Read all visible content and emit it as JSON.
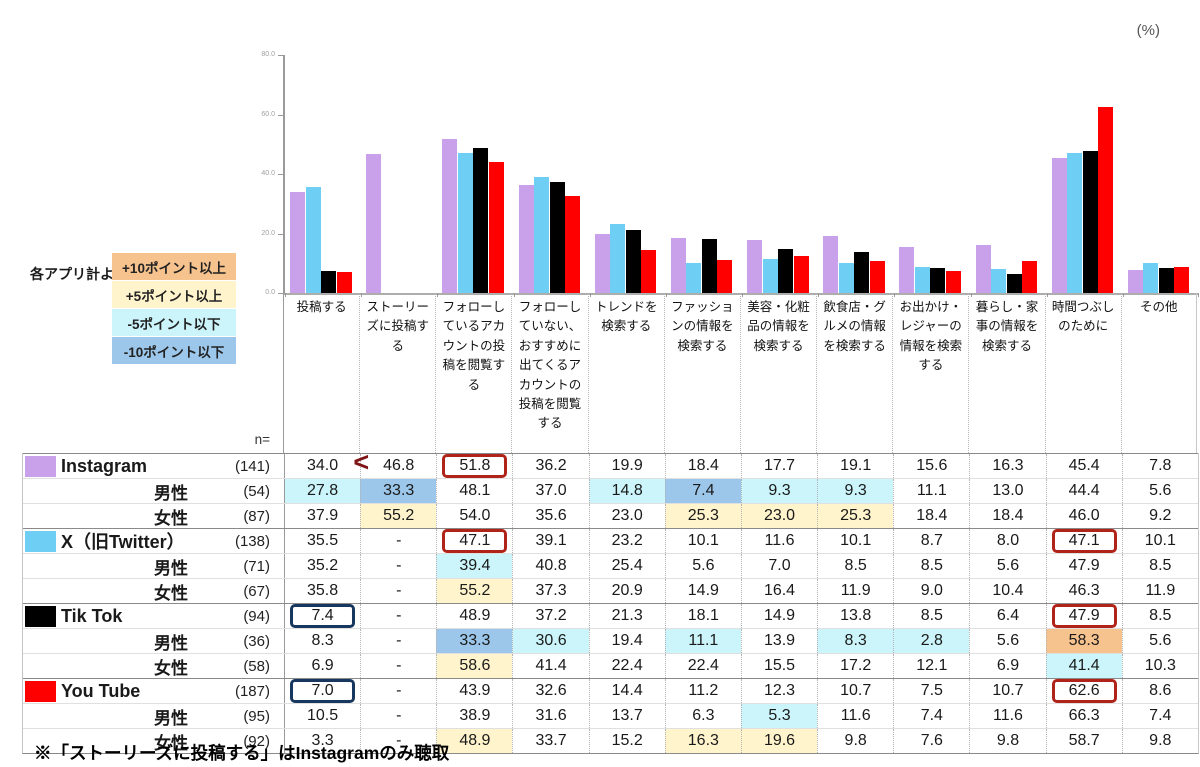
{
  "percent_label": "(%)",
  "legend": {
    "intro": "各アプリ計より",
    "items": [
      {
        "label": "+10ポイント以上",
        "key": "orange"
      },
      {
        "label": "+5ポイント以上",
        "key": "yellow"
      },
      {
        "label": "-5ポイント以下",
        "key": "cyan"
      },
      {
        "label": "-10ポイント以下",
        "key": "blue"
      }
    ]
  },
  "highlight_colors": {
    "orange": "#F6C28E",
    "yellow": "#FFF4CC",
    "cyan": "#CBF5FA",
    "blue": "#9CC7EA"
  },
  "box_colors": {
    "red": "#B02318",
    "navy": "#17375E"
  },
  "chart_data": {
    "type": "bar",
    "unit": "(%)",
    "ylim": [
      0,
      80
    ],
    "yticks": [
      0,
      20,
      40,
      60,
      80
    ],
    "categories": [
      "投稿する",
      "ストーリーズに投稿する",
      "フォローしているアカウントの投稿を閲覧する",
      "フォローしていない、おすすめに出てくるアカウントの投稿を閲覧する",
      "トレンドを検索する",
      "ファッションの情報を検索する",
      "美容・化粧品の情報を検索する",
      "飲食店・グルメの情報を検索する",
      "お出かけ・レジャーの情報を検索する",
      "暮らし・家事の情報を検索する",
      "時間つぶしのために",
      "その他"
    ],
    "series": [
      {
        "name": "Instagram",
        "color": "#C9A1EB",
        "values": [
          34.0,
          46.8,
          51.8,
          36.2,
          19.9,
          18.4,
          17.7,
          19.1,
          15.6,
          16.3,
          45.4,
          7.8
        ]
      },
      {
        "name": "X（旧Twitter）",
        "color": "#6FCEF4",
        "values": [
          35.5,
          null,
          47.1,
          39.1,
          23.2,
          10.1,
          11.6,
          10.1,
          8.7,
          8.0,
          47.1,
          10.1
        ]
      },
      {
        "name": "Tik Tok",
        "color": "#000000",
        "values": [
          7.4,
          null,
          48.9,
          37.2,
          21.3,
          18.1,
          14.9,
          13.8,
          8.5,
          6.4,
          47.9,
          8.5
        ]
      },
      {
        "name": "You Tube",
        "color": "#FE0000",
        "values": [
          7.0,
          null,
          43.9,
          32.6,
          14.4,
          11.2,
          12.3,
          10.7,
          7.5,
          10.7,
          62.6,
          8.6
        ]
      }
    ]
  },
  "table": {
    "n_label": "n=",
    "rows": [
      {
        "label": "Instagram",
        "type": "app",
        "swatch": "#C9A1EB",
        "n": "(141)",
        "values": [
          "34.0",
          "46.8",
          "51.8",
          "36.2",
          "19.9",
          "18.4",
          "17.7",
          "19.1",
          "15.6",
          "16.3",
          "45.4",
          "7.8"
        ],
        "highlights": {},
        "boxes": {
          "2": "red"
        },
        "marks": {
          "0": "<"
        }
      },
      {
        "label": "男性",
        "type": "gender",
        "n": "(54)",
        "values": [
          "27.8",
          "33.3",
          "48.1",
          "37.0",
          "14.8",
          "7.4",
          "9.3",
          "9.3",
          "11.1",
          "13.0",
          "44.4",
          "5.6"
        ],
        "highlights": {
          "0": "cyan",
          "1": "blue",
          "4": "cyan",
          "5": "blue",
          "6": "cyan",
          "7": "cyan"
        },
        "boxes": {},
        "marks": {}
      },
      {
        "label": "女性",
        "type": "gender",
        "n": "(87)",
        "values": [
          "37.9",
          "55.2",
          "54.0",
          "35.6",
          "23.0",
          "25.3",
          "23.0",
          "25.3",
          "18.4",
          "18.4",
          "46.0",
          "9.2"
        ],
        "highlights": {
          "1": "yellow",
          "5": "yellow",
          "6": "yellow",
          "7": "yellow"
        },
        "boxes": {},
        "marks": {}
      },
      {
        "label": "X（旧Twitter）",
        "type": "app",
        "swatch": "#6FCEF4",
        "n": "(138)",
        "values": [
          "35.5",
          "-",
          "47.1",
          "39.1",
          "23.2",
          "10.1",
          "11.6",
          "10.1",
          "8.7",
          "8.0",
          "47.1",
          "10.1"
        ],
        "highlights": {},
        "boxes": {
          "2": "red",
          "10": "red"
        },
        "marks": {}
      },
      {
        "label": "男性",
        "type": "gender",
        "n": "(71)",
        "values": [
          "35.2",
          "-",
          "39.4",
          "40.8",
          "25.4",
          "5.6",
          "7.0",
          "8.5",
          "8.5",
          "5.6",
          "47.9",
          "8.5"
        ],
        "highlights": {
          "2": "cyan"
        },
        "boxes": {},
        "marks": {}
      },
      {
        "label": "女性",
        "type": "gender",
        "n": "(67)",
        "values": [
          "35.8",
          "-",
          "55.2",
          "37.3",
          "20.9",
          "14.9",
          "16.4",
          "11.9",
          "9.0",
          "10.4",
          "46.3",
          "11.9"
        ],
        "highlights": {
          "2": "yellow"
        },
        "boxes": {},
        "marks": {}
      },
      {
        "label": "Tik Tok",
        "type": "app",
        "swatch": "#000000",
        "n": "(94)",
        "values": [
          "7.4",
          "-",
          "48.9",
          "37.2",
          "21.3",
          "18.1",
          "14.9",
          "13.8",
          "8.5",
          "6.4",
          "47.9",
          "8.5"
        ],
        "highlights": {},
        "boxes": {
          "0": "navy",
          "10": "red"
        },
        "marks": {}
      },
      {
        "label": "男性",
        "type": "gender",
        "n": "(36)",
        "values": [
          "8.3",
          "-",
          "33.3",
          "30.6",
          "19.4",
          "11.1",
          "13.9",
          "8.3",
          "2.8",
          "5.6",
          "58.3",
          "5.6"
        ],
        "highlights": {
          "2": "blue",
          "3": "cyan",
          "5": "cyan",
          "7": "cyan",
          "8": "cyan",
          "10": "orange"
        },
        "boxes": {},
        "marks": {}
      },
      {
        "label": "女性",
        "type": "gender",
        "n": "(58)",
        "values": [
          "6.9",
          "-",
          "58.6",
          "41.4",
          "22.4",
          "22.4",
          "15.5",
          "17.2",
          "12.1",
          "6.9",
          "41.4",
          "10.3"
        ],
        "highlights": {
          "2": "yellow",
          "10": "cyan"
        },
        "boxes": {},
        "marks": {}
      },
      {
        "label": "You Tube",
        "type": "app",
        "swatch": "#FE0000",
        "n": "(187)",
        "values": [
          "7.0",
          "-",
          "43.9",
          "32.6",
          "14.4",
          "11.2",
          "12.3",
          "10.7",
          "7.5",
          "10.7",
          "62.6",
          "8.6"
        ],
        "highlights": {},
        "boxes": {
          "0": "navy",
          "10": "red"
        },
        "marks": {}
      },
      {
        "label": "男性",
        "type": "gender",
        "n": "(95)",
        "values": [
          "10.5",
          "-",
          "38.9",
          "31.6",
          "13.7",
          "6.3",
          "5.3",
          "11.6",
          "7.4",
          "11.6",
          "66.3",
          "7.4"
        ],
        "highlights": {
          "6": "cyan"
        },
        "boxes": {},
        "marks": {}
      },
      {
        "label": "女性",
        "type": "gender",
        "n": "(92)",
        "values": [
          "3.3",
          "-",
          "48.9",
          "33.7",
          "15.2",
          "16.3",
          "19.6",
          "9.8",
          "7.6",
          "9.8",
          "58.7",
          "9.8"
        ],
        "highlights": {
          "2": "yellow",
          "5": "yellow",
          "6": "yellow"
        },
        "boxes": {},
        "marks": {}
      }
    ]
  },
  "footnote": "※「ストーリーズに投稿する」はInstagramのみ聴取"
}
